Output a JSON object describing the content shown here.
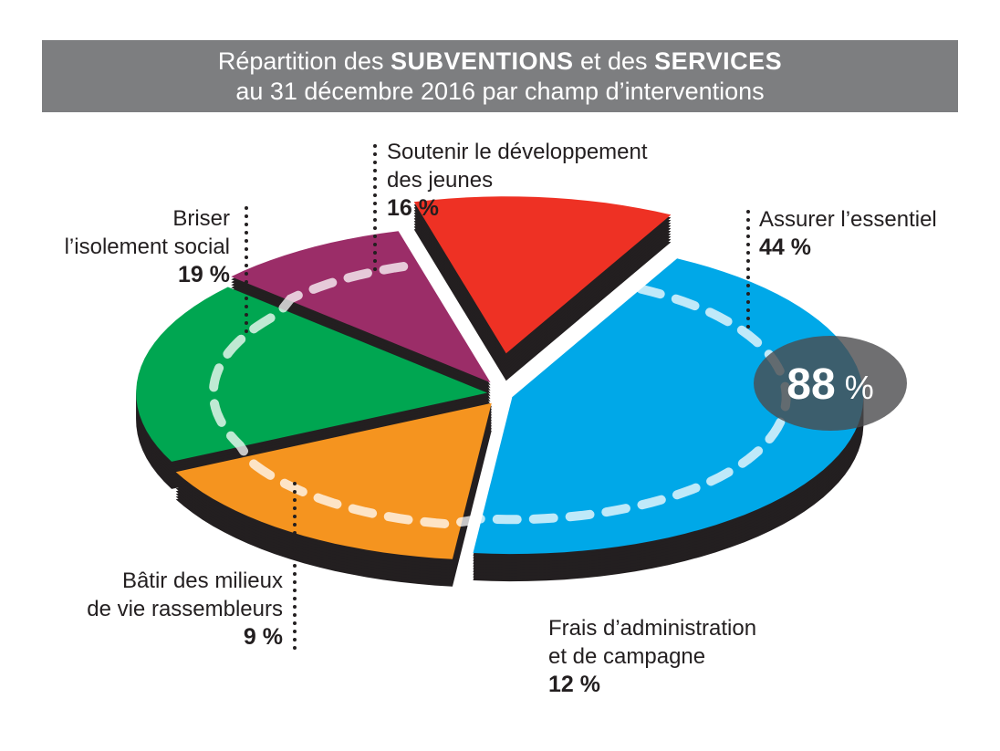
{
  "title": {
    "part1": "Répartition des ",
    "bold1": "SUBVENTIONS",
    "part2": " et des ",
    "bold2": "SERVICES",
    "line2": "au 31 décembre 2016 par champ d’interventions"
  },
  "colors": {
    "title_bg": "#7d7e80",
    "assurer": "#00a8e8",
    "soutenir": "#f5941f",
    "briser": "#00a651",
    "batir": "#9b2d68",
    "frais": "#ee3124",
    "shadow": "#231f20"
  },
  "total_badge": {
    "value": "88",
    "unit": " %"
  },
  "chart_data": {
    "type": "pie",
    "title": "Répartition des SUBVENTIONS et des SERVICES au 31 décembre 2016 par champ d’interventions",
    "categories": [
      "Assurer l’essentiel",
      "Soutenir le développement des jeunes",
      "Briser l’isolement social",
      "Bâtir des milieux de vie rassembleurs",
      "Frais d’administration et de campagne"
    ],
    "values": [
      44,
      16,
      19,
      9,
      12
    ],
    "unit": "%",
    "highlight_total": 88
  },
  "labels": {
    "assurer": {
      "line1": "Assurer l’essentiel",
      "pct": "44 %"
    },
    "soutenir": {
      "line1": "Soutenir le développement",
      "line2": "des jeunes",
      "pct": "16 %"
    },
    "briser": {
      "line1": "Briser",
      "line2": "l’isolement social",
      "pct": "19 %"
    },
    "batir": {
      "line1": "Bâtir des milieux",
      "line2": "de vie rassembleurs",
      "pct": "9 %"
    },
    "frais": {
      "line1": "Frais d’administration",
      "line2": "et de campagne",
      "pct": "12 %"
    }
  }
}
